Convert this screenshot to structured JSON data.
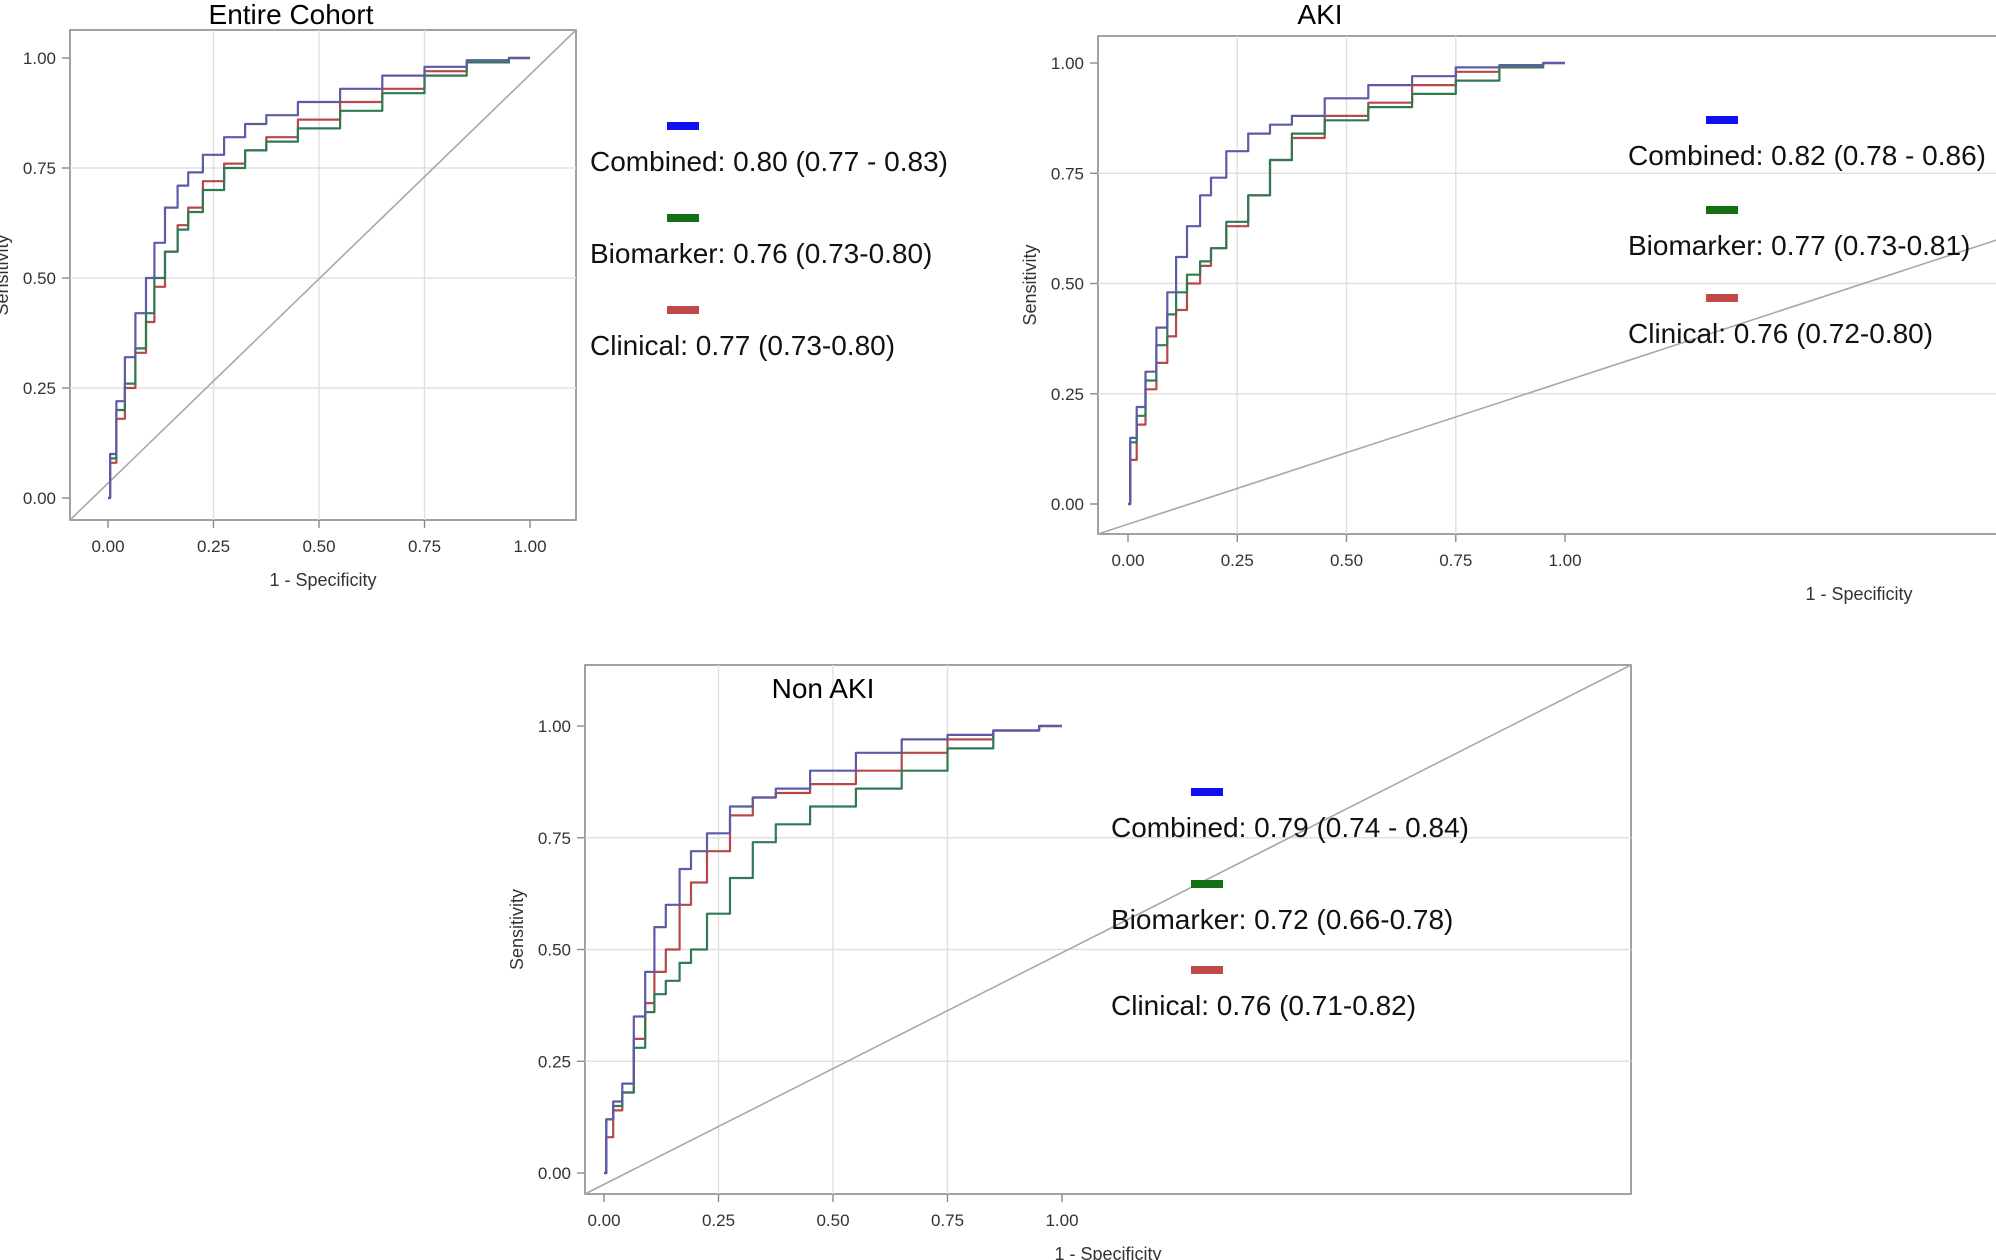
{
  "colors": {
    "combined_legend": "#1010ee",
    "biomarker_legend": "#157015",
    "clinical_legend": "#c04a4a",
    "combined_line": "#5b5ba8",
    "biomarker_line": "#2f7a55",
    "clinical_line": "#b84848",
    "overlap_line": "#1a1a1a"
  },
  "chart_data": [
    {
      "type": "line",
      "title": "Entire Cohort",
      "xlabel": "1 - Specificity",
      "ylabel": "Sensitivity",
      "xlim": [
        0,
        1
      ],
      "ylim": [
        0,
        1
      ],
      "x_ticks": [
        "0.00",
        "0.25",
        "0.50",
        "0.75",
        "1.00"
      ],
      "y_ticks": [
        "0.00",
        "0.25",
        "0.50",
        "0.75",
        "1.00"
      ],
      "grid": true,
      "reference_line": "diagonal",
      "legend": [
        {
          "series": "Combined",
          "text": "Combined: 0.80 (0.77 - 0.83)",
          "color": "#1010ee"
        },
        {
          "series": "Biomarker",
          "text": "Biomarker: 0.76 (0.73-0.80)",
          "color": "#157015"
        },
        {
          "series": "Clinical",
          "text": "Clinical: 0.77 (0.73-0.80)",
          "color": "#c04a4a"
        }
      ],
      "series": [
        {
          "name": "Combined",
          "color": "#5b5ba8",
          "x": [
            0,
            0.01,
            0.03,
            0.05,
            0.08,
            0.1,
            0.12,
            0.15,
            0.18,
            0.2,
            0.25,
            0.3,
            0.35,
            0.4,
            0.5,
            0.6,
            0.7,
            0.8,
            0.9,
            1.0
          ],
          "y": [
            0,
            0.1,
            0.22,
            0.32,
            0.42,
            0.5,
            0.58,
            0.66,
            0.71,
            0.74,
            0.78,
            0.82,
            0.85,
            0.87,
            0.9,
            0.93,
            0.96,
            0.98,
            0.995,
            1.0
          ]
        },
        {
          "name": "Biomarker",
          "color": "#2f7a55",
          "x": [
            0,
            0.01,
            0.03,
            0.05,
            0.08,
            0.1,
            0.12,
            0.15,
            0.18,
            0.2,
            0.25,
            0.3,
            0.35,
            0.4,
            0.5,
            0.6,
            0.7,
            0.8,
            0.9,
            1.0
          ],
          "y": [
            0,
            0.09,
            0.2,
            0.26,
            0.34,
            0.42,
            0.5,
            0.56,
            0.61,
            0.65,
            0.7,
            0.75,
            0.79,
            0.81,
            0.84,
            0.88,
            0.92,
            0.96,
            0.99,
            1.0
          ]
        },
        {
          "name": "Clinical",
          "color": "#b84848",
          "x": [
            0,
            0.01,
            0.03,
            0.05,
            0.08,
            0.1,
            0.12,
            0.15,
            0.18,
            0.2,
            0.25,
            0.3,
            0.35,
            0.4,
            0.5,
            0.6,
            0.7,
            0.8,
            0.9,
            1.0
          ],
          "y": [
            0,
            0.08,
            0.18,
            0.25,
            0.33,
            0.4,
            0.48,
            0.56,
            0.62,
            0.66,
            0.72,
            0.76,
            0.79,
            0.82,
            0.86,
            0.9,
            0.93,
            0.97,
            0.99,
            1.0
          ]
        }
      ]
    },
    {
      "type": "line",
      "title": "AKI",
      "xlabel": "1 - Specificity",
      "ylabel": "Sensitivity",
      "xlim": [
        0,
        1
      ],
      "ylim": [
        0,
        1
      ],
      "x_ticks": [
        "0.00",
        "0.25",
        "0.50",
        "0.75",
        "1.00"
      ],
      "y_ticks": [
        "0.00",
        "0.25",
        "0.50",
        "0.75",
        "1.00"
      ],
      "grid": true,
      "reference_line": "diagonal",
      "legend": [
        {
          "series": "Combined",
          "text": "Combined: 0.82 (0.78 - 0.86)",
          "color": "#1010ee"
        },
        {
          "series": "Biomarker",
          "text": "Biomarker: 0.77 (0.73-0.81)",
          "color": "#157015"
        },
        {
          "series": "Clinical",
          "text": "Clinical: 0.76 (0.72-0.80)",
          "color": "#c04a4a"
        }
      ],
      "series": [
        {
          "name": "Combined",
          "color": "#5b5ba8",
          "x": [
            0,
            0.01,
            0.03,
            0.05,
            0.08,
            0.1,
            0.12,
            0.15,
            0.18,
            0.2,
            0.25,
            0.3,
            0.35,
            0.4,
            0.5,
            0.6,
            0.7,
            0.8,
            0.9,
            1.0
          ],
          "y": [
            0,
            0.15,
            0.22,
            0.3,
            0.4,
            0.48,
            0.56,
            0.63,
            0.7,
            0.74,
            0.8,
            0.84,
            0.86,
            0.88,
            0.92,
            0.95,
            0.97,
            0.99,
            0.995,
            1.0
          ]
        },
        {
          "name": "Biomarker",
          "color": "#2f7a55",
          "x": [
            0,
            0.01,
            0.03,
            0.05,
            0.08,
            0.1,
            0.12,
            0.15,
            0.18,
            0.2,
            0.25,
            0.3,
            0.35,
            0.4,
            0.5,
            0.6,
            0.7,
            0.8,
            0.9,
            1.0
          ],
          "y": [
            0,
            0.14,
            0.2,
            0.28,
            0.36,
            0.43,
            0.48,
            0.52,
            0.55,
            0.58,
            0.64,
            0.7,
            0.78,
            0.84,
            0.87,
            0.9,
            0.93,
            0.96,
            0.99,
            1.0
          ]
        },
        {
          "name": "Clinical",
          "color": "#b84848",
          "x": [
            0,
            0.01,
            0.03,
            0.05,
            0.08,
            0.1,
            0.12,
            0.15,
            0.18,
            0.2,
            0.25,
            0.3,
            0.35,
            0.4,
            0.5,
            0.6,
            0.7,
            0.8,
            0.9,
            1.0
          ],
          "y": [
            0,
            0.1,
            0.18,
            0.26,
            0.32,
            0.38,
            0.44,
            0.5,
            0.54,
            0.58,
            0.63,
            0.7,
            0.78,
            0.83,
            0.88,
            0.91,
            0.95,
            0.98,
            0.995,
            1.0
          ]
        }
      ]
    },
    {
      "type": "line",
      "title": "Non AKI",
      "xlabel": "1 - Specificity",
      "ylabel": "Sensitivity",
      "xlim": [
        0,
        1
      ],
      "ylim": [
        0,
        1
      ],
      "x_ticks": [
        "0.00",
        "0.25",
        "0.50",
        "0.75",
        "1.00"
      ],
      "y_ticks": [
        "0.00",
        "0.25",
        "0.50",
        "0.75",
        "1.00"
      ],
      "grid": true,
      "reference_line": "diagonal",
      "legend": [
        {
          "series": "Combined",
          "text": "Combined: 0.79 (0.74 - 0.84)",
          "color": "#1010ee"
        },
        {
          "series": "Biomarker",
          "text": "Biomarker: 0.72 (0.66-0.78)",
          "color": "#157015"
        },
        {
          "series": "Clinical",
          "text": "Clinical: 0.76 (0.71-0.82)",
          "color": "#c04a4a"
        }
      ],
      "series": [
        {
          "name": "Combined",
          "color": "#5b5ba8",
          "x": [
            0,
            0.01,
            0.03,
            0.05,
            0.08,
            0.1,
            0.12,
            0.15,
            0.18,
            0.2,
            0.25,
            0.3,
            0.35,
            0.4,
            0.5,
            0.6,
            0.7,
            0.8,
            0.9,
            1.0
          ],
          "y": [
            0,
            0.12,
            0.16,
            0.2,
            0.35,
            0.45,
            0.55,
            0.6,
            0.68,
            0.72,
            0.76,
            0.82,
            0.84,
            0.86,
            0.9,
            0.94,
            0.97,
            0.98,
            0.99,
            1.0
          ]
        },
        {
          "name": "Biomarker",
          "color": "#2f7a55",
          "x": [
            0,
            0.01,
            0.03,
            0.05,
            0.08,
            0.1,
            0.12,
            0.15,
            0.18,
            0.2,
            0.25,
            0.3,
            0.35,
            0.4,
            0.5,
            0.6,
            0.7,
            0.8,
            0.9,
            1.0
          ],
          "y": [
            0,
            0.12,
            0.15,
            0.18,
            0.28,
            0.36,
            0.4,
            0.43,
            0.47,
            0.5,
            0.58,
            0.66,
            0.74,
            0.78,
            0.82,
            0.86,
            0.9,
            0.95,
            0.99,
            1.0
          ]
        },
        {
          "name": "Clinical",
          "color": "#b84848",
          "x": [
            0,
            0.01,
            0.03,
            0.05,
            0.08,
            0.1,
            0.12,
            0.15,
            0.18,
            0.2,
            0.25,
            0.3,
            0.35,
            0.4,
            0.5,
            0.6,
            0.7,
            0.8,
            0.9,
            1.0
          ],
          "y": [
            0,
            0.08,
            0.14,
            0.18,
            0.3,
            0.38,
            0.45,
            0.5,
            0.6,
            0.65,
            0.72,
            0.8,
            0.84,
            0.85,
            0.87,
            0.9,
            0.94,
            0.97,
            0.99,
            1.0
          ]
        }
      ]
    }
  ]
}
